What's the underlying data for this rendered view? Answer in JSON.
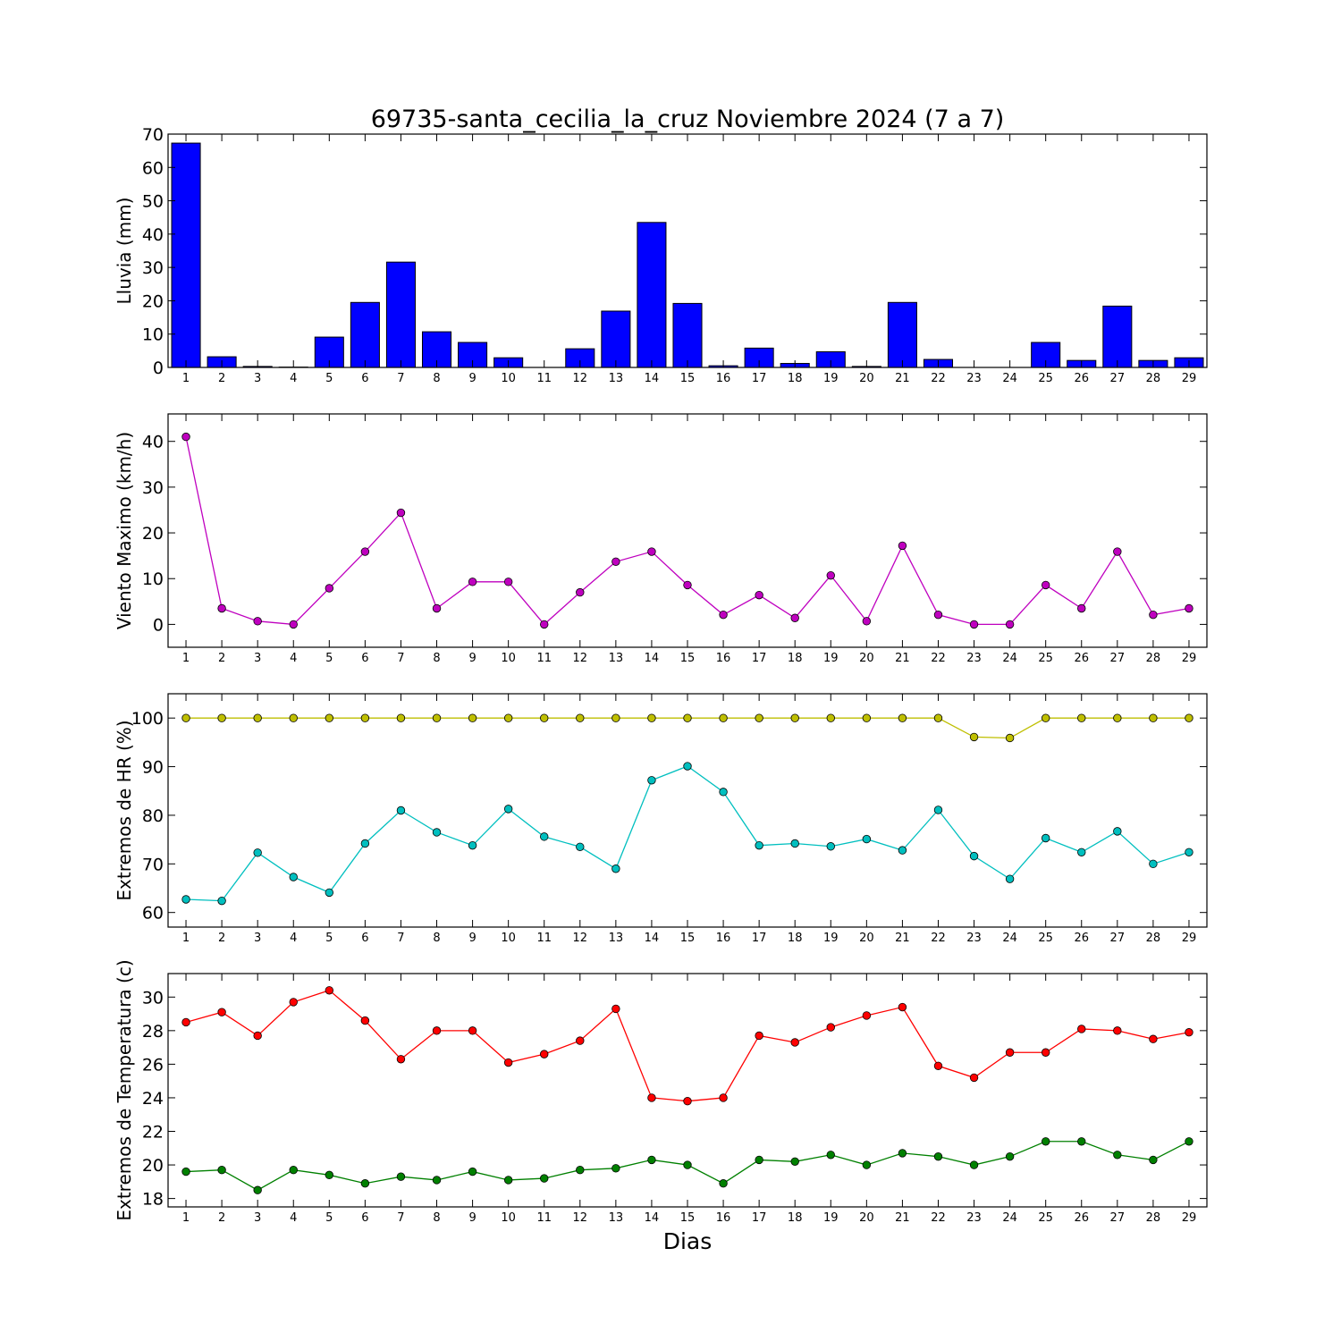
{
  "figure": {
    "title": "69735-santa_cecilia_la_cruz Noviembre 2024  (7 a 7)",
    "xlabel": "Dias"
  },
  "chart_data": [
    {
      "type": "bar",
      "ylabel": "Lluvia (mm)",
      "ylim": [
        0,
        70
      ],
      "yticks": [
        0,
        10,
        20,
        30,
        40,
        50,
        60,
        70
      ],
      "categories": [
        1,
        2,
        3,
        4,
        5,
        6,
        7,
        8,
        9,
        10,
        11,
        12,
        13,
        14,
        15,
        16,
        17,
        18,
        19,
        20,
        21,
        22,
        23,
        24,
        25,
        26,
        27,
        28,
        29
      ],
      "series": [
        {
          "color": "#0000ff",
          "values": [
            67.3,
            3.2,
            0.3,
            0.1,
            9.1,
            19.5,
            31.6,
            10.7,
            7.5,
            2.9,
            0,
            5.6,
            16.9,
            43.5,
            19.2,
            0.5,
            5.8,
            1.2,
            4.7,
            0.3,
            19.5,
            2.4,
            0,
            0,
            7.5,
            2.1,
            18.4,
            2.1,
            2.9
          ]
        }
      ]
    },
    {
      "type": "line",
      "ylabel": "Viento Maximo (km/h)",
      "ylim": [
        -5,
        46
      ],
      "yticks": [
        0,
        10,
        20,
        30,
        40
      ],
      "categories": [
        1,
        2,
        3,
        4,
        5,
        6,
        7,
        8,
        9,
        10,
        11,
        12,
        13,
        14,
        15,
        16,
        17,
        18,
        19,
        20,
        21,
        22,
        23,
        24,
        25,
        26,
        27,
        28,
        29
      ],
      "series": [
        {
          "color": "#bf00bf",
          "values": [
            41,
            3.5,
            0.7,
            0,
            7.9,
            15.9,
            24.4,
            3.5,
            9.3,
            9.3,
            0,
            7.0,
            13.7,
            15.9,
            8.6,
            2.1,
            6.4,
            1.4,
            10.7,
            0.7,
            17.2,
            2.1,
            0,
            0,
            8.6,
            3.5,
            15.9,
            2.1,
            3.5
          ]
        }
      ]
    },
    {
      "type": "line",
      "ylabel": "Extremos de HR (%)",
      "ylim": [
        57,
        105
      ],
      "yticks": [
        60,
        70,
        80,
        90,
        100
      ],
      "categories": [
        1,
        2,
        3,
        4,
        5,
        6,
        7,
        8,
        9,
        10,
        11,
        12,
        13,
        14,
        15,
        16,
        17,
        18,
        19,
        20,
        21,
        22,
        23,
        24,
        25,
        26,
        27,
        28,
        29
      ],
      "series": [
        {
          "color": "#bfbf00",
          "values": [
            100,
            100,
            100,
            100,
            100,
            100,
            100,
            100,
            100,
            100,
            100,
            100,
            100,
            100,
            100,
            100,
            100,
            100,
            100,
            100,
            100,
            100,
            96.1,
            95.9,
            100,
            100,
            100,
            100,
            100
          ]
        },
        {
          "color": "#00bfbf",
          "values": [
            62.7,
            62.4,
            72.3,
            67.3,
            64.1,
            74.2,
            81.0,
            76.5,
            73.8,
            81.3,
            75.6,
            73.5,
            69.0,
            87.2,
            90.1,
            84.8,
            73.8,
            74.2,
            73.6,
            75.1,
            72.8,
            81.1,
            71.6,
            66.9,
            75.3,
            72.4,
            76.7,
            70.0,
            72.4
          ]
        }
      ]
    },
    {
      "type": "line",
      "ylabel": "Extremos de Temperatura (c)",
      "ylim": [
        17.5,
        31.4
      ],
      "yticks": [
        18,
        20,
        22,
        24,
        26,
        28,
        30
      ],
      "categories": [
        1,
        2,
        3,
        4,
        5,
        6,
        7,
        8,
        9,
        10,
        11,
        12,
        13,
        14,
        15,
        16,
        17,
        18,
        19,
        20,
        21,
        22,
        23,
        24,
        25,
        26,
        27,
        28,
        29
      ],
      "series": [
        {
          "color": "#ff0000",
          "values": [
            28.5,
            29.1,
            27.7,
            29.7,
            30.4,
            28.6,
            26.3,
            28.0,
            28.0,
            26.1,
            26.6,
            27.4,
            29.3,
            24.0,
            23.8,
            24.0,
            27.7,
            27.3,
            28.2,
            28.9,
            29.4,
            25.9,
            25.2,
            26.7,
            26.7,
            28.1,
            28.0,
            27.5,
            27.9
          ]
        },
        {
          "color": "#008000",
          "values": [
            19.6,
            19.7,
            18.5,
            19.7,
            19.4,
            18.9,
            19.3,
            19.1,
            19.6,
            19.1,
            19.2,
            19.7,
            19.8,
            20.3,
            20.0,
            18.9,
            20.3,
            20.2,
            20.6,
            20.0,
            20.7,
            20.5,
            20.0,
            20.5,
            21.4,
            21.4,
            20.6,
            20.3,
            21.4
          ]
        }
      ]
    }
  ]
}
